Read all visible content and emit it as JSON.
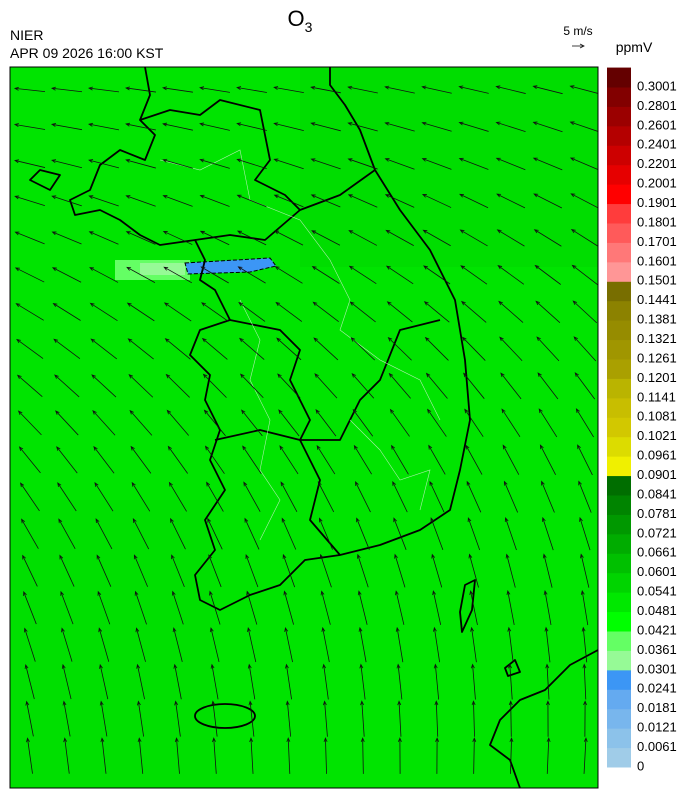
{
  "header": {
    "title": {
      "text": "O",
      "subscript": "3"
    },
    "agency": "NIER",
    "datetime": "APR 09 2026 16:00 KST",
    "wind_scale": "5 m/s"
  },
  "colorbar": {
    "unit": "ppmV",
    "labels": [
      "0",
      "0.0061",
      "0.0121",
      "0.0181",
      "0.0241",
      "0.0301",
      "0.0361",
      "0.0421",
      "0.0481",
      "0.0541",
      "0.0601",
      "0.0661",
      "0.0721",
      "0.0781",
      "0.0841",
      "0.0901",
      "0.0961",
      "0.1021",
      "0.1081",
      "0.1141",
      "0.1201",
      "0.1261",
      "0.1321",
      "0.1381",
      "0.1441",
      "0.1501",
      "0.1601",
      "0.1701",
      "0.1801",
      "0.1901",
      "0.2001",
      "0.2201",
      "0.2401",
      "0.2601",
      "0.2801",
      "0.3001"
    ],
    "colors": [
      "#a0cce8",
      "#8cc2ea",
      "#78b6ed",
      "#64aaf0",
      "#3c96f5",
      "#96fa96",
      "#64ff64",
      "#00ff00",
      "#00e800",
      "#00d400",
      "#00c000",
      "#00ac00",
      "#009800",
      "#008400",
      "#006e00",
      "#f0f000",
      "#dcdc00",
      "#d2c800",
      "#c8be00",
      "#bab400",
      "#aaa000",
      "#a09600",
      "#968c00",
      "#8c8200",
      "#786e00",
      "#ff9696",
      "#ff7878",
      "#ff5a5a",
      "#ff3c3c",
      "#ff0000",
      "#e60000",
      "#cd0000",
      "#b40000",
      "#9b0000",
      "#820000",
      "#640000"
    ]
  }
}
